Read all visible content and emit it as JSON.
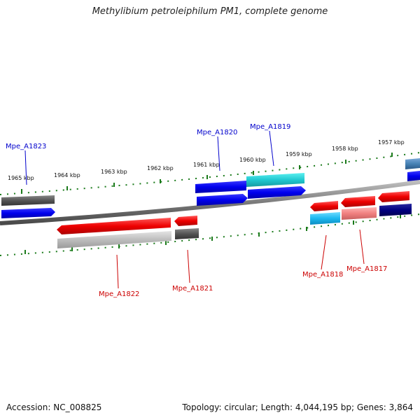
{
  "header": {
    "title": "Methylibium petroleiphilum PM1, complete genome"
  },
  "footer": {
    "accession": "Accession: NC_008825",
    "summary": "Topology: circular; Length: 4,044,195 bp; Genes: 3,864"
  },
  "colors": {
    "forward_label": "#0000cc",
    "reverse_label": "#cc0000",
    "tick": "#1a7a1a",
    "backbone": "#8a8a8a"
  },
  "scale": {
    "ticks": [
      {
        "label": "1965 kbp"
      },
      {
        "label": "1964 kbp"
      },
      {
        "label": "1963 kbp"
      },
      {
        "label": "1962 kbp"
      },
      {
        "label": "1961 kbp"
      },
      {
        "label": "1960 kbp"
      },
      {
        "label": "1959 kbp"
      },
      {
        "label": "1958 kbp"
      },
      {
        "label": "1957 kbp"
      }
    ]
  },
  "genes": {
    "labels": [
      {
        "name": "Mpe_A1823",
        "strand": "forward"
      },
      {
        "name": "Mpe_A1820",
        "strand": "forward"
      },
      {
        "name": "Mpe_A1819",
        "strand": "forward"
      },
      {
        "name": "Mpe_A1822",
        "strand": "reverse"
      },
      {
        "name": "Mpe_A1821",
        "strand": "reverse"
      },
      {
        "name": "Mpe_A1818",
        "strand": "reverse"
      },
      {
        "name": "Mpe_A1817",
        "strand": "reverse"
      }
    ]
  }
}
